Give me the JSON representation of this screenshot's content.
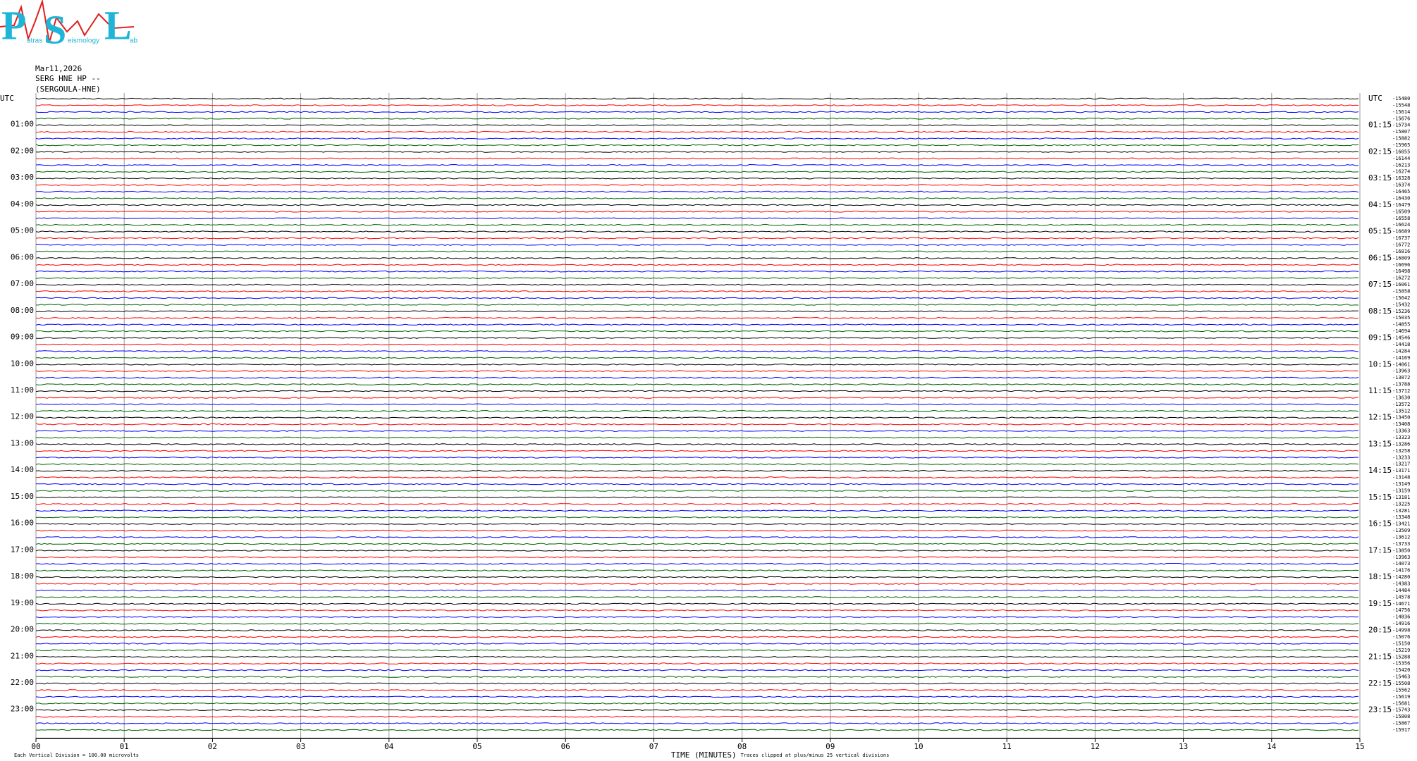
{
  "logo": {
    "letters": [
      "P",
      "S",
      "L"
    ],
    "words": [
      "atras",
      "eismology",
      "ab"
    ]
  },
  "chart_data": {
    "type": "helicorder",
    "date": "Mar11,2026",
    "station": "SERG HNE HP --",
    "station_name": "(SERGOULA-HNE)",
    "left_labels": [
      "UTC",
      "01:00",
      "02:00",
      "03:00",
      "04:00",
      "05:00",
      "06:00",
      "07:00",
      "08:00",
      "09:00",
      "10:00",
      "11:00",
      "12:00",
      "13:00",
      "14:00",
      "15:00",
      "16:00",
      "17:00",
      "18:00",
      "19:00",
      "20:00",
      "21:00",
      "22:00",
      "23:00"
    ],
    "right_labels": [
      "UTC",
      "01:15",
      "02:15",
      "03:15",
      "04:15",
      "05:15",
      "06:15",
      "07:15",
      "08:15",
      "09:15",
      "10:15",
      "11:15",
      "12:15",
      "13:15",
      "14:15",
      "15:15",
      "16:15",
      "17:15",
      "18:15",
      "19:15",
      "20:15",
      "21:15",
      "22:15",
      "23:15"
    ],
    "trace_offsets": [
      -15480,
      -15548,
      -15614,
      -15676,
      -15734,
      -15807,
      -15882,
      -15965,
      -16055,
      -16144,
      -16213,
      -16274,
      -16328,
      -16374,
      -16465,
      -16430,
      -16479,
      -16509,
      -16558,
      -16624,
      -16689,
      -16737,
      -16772,
      -16816,
      -16809,
      -16696,
      -16498,
      -16272,
      -16061,
      -15858,
      -15642,
      -15432,
      -15236,
      -15035,
      -14855,
      -14694,
      -14546,
      -14418,
      -14284,
      -14169,
      -14061,
      -13963,
      -13872,
      -13788,
      -13712,
      -13630,
      -13572,
      -13512,
      -13450,
      -13408,
      -13363,
      -13323,
      -13286,
      -13258,
      -13233,
      -13217,
      -13171,
      -13148,
      -13149,
      -13159,
      -13181,
      -13225,
      -13281,
      -13348,
      -13421,
      -13509,
      -13612,
      -13733,
      -13850,
      -13963,
      -14073,
      -14176,
      -14280,
      -14383,
      -14484,
      -14578,
      -14671,
      -14756,
      -14836,
      -14916,
      -14998,
      -15076,
      -15150,
      -15219,
      -15288,
      -15356,
      -15420,
      -15463,
      -15508,
      -15562,
      -15619,
      -15681,
      -15743,
      -15808,
      -15867,
      -15917
    ],
    "trace_colors": [
      "#000000",
      "#ff0000",
      "#0000ff",
      "#006400"
    ],
    "xlim": [
      0,
      15
    ],
    "xticks": [
      {
        "value": 0,
        "label": "00"
      },
      {
        "value": 1,
        "label": "01"
      },
      {
        "value": 2,
        "label": "02"
      },
      {
        "value": 3,
        "label": "03"
      },
      {
        "value": 4,
        "label": "04"
      },
      {
        "value": 5,
        "label": "05"
      },
      {
        "value": 6,
        "label": "06"
      },
      {
        "value": 7,
        "label": "07"
      },
      {
        "value": 8,
        "label": "08"
      },
      {
        "value": 9,
        "label": "09"
      },
      10,
      11,
      12,
      13,
      14,
      15
    ],
    "x_label": "TIME (MINUTES)",
    "scale_note": "Each Vertical Division =  100.00 microvolts",
    "clip_note": "Traces clipped at plus/minus 25 vertical divisions",
    "grid": true
  }
}
